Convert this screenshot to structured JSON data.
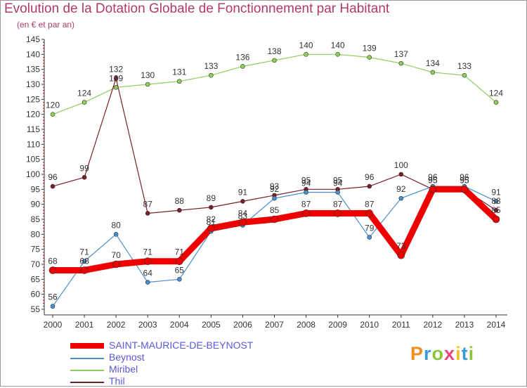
{
  "header": {
    "title": "Evolution de la Dotation Globale de Fonctionnement par Habitant",
    "subtitle": "(en € et par an)"
  },
  "logo": {
    "text": "Proxiti",
    "colors": [
      "#f28c1e",
      "#3a9ad9",
      "#8cc63f",
      "#e8477a",
      "#f2c21e",
      "#3a9ad9",
      "#8cc63f"
    ]
  },
  "chart_data": {
    "type": "line",
    "title": "Evolution de la Dotation Globale de Fonctionnement par Habitant",
    "subtitle": "(en € et par an)",
    "x": [
      2000,
      2001,
      2002,
      2003,
      2004,
      2005,
      2006,
      2007,
      2008,
      2009,
      2010,
      2011,
      2012,
      2013,
      2014
    ],
    "ylim": [
      55,
      145
    ],
    "ystep": 5,
    "grid": false,
    "legend_position": "bottom-left",
    "series": [
      {
        "name": "SAINT-MAURICE-DE-BEYNOST",
        "color": "#ee0000",
        "values": [
          68,
          68,
          70,
          71,
          71,
          82,
          84,
          85,
          87,
          87,
          87,
          73,
          95,
          95,
          85
        ]
      },
      {
        "name": "Beynost",
        "color": "#4a8fd0",
        "values": [
          56,
          71,
          80,
          64,
          65,
          81,
          83,
          92,
          94,
          94,
          79,
          92,
          96,
          96,
          91
        ]
      },
      {
        "name": "Miribel",
        "color": "#8ecf5a",
        "values": [
          120,
          124,
          129,
          130,
          131,
          133,
          136,
          138,
          140,
          140,
          139,
          137,
          134,
          133,
          124
        ]
      },
      {
        "name": "Thil",
        "color": "#7a1e28",
        "values": [
          96,
          99,
          132,
          87,
          88,
          89,
          91,
          93,
          95,
          95,
          96,
          100,
          95,
          95,
          88
        ]
      }
    ]
  }
}
